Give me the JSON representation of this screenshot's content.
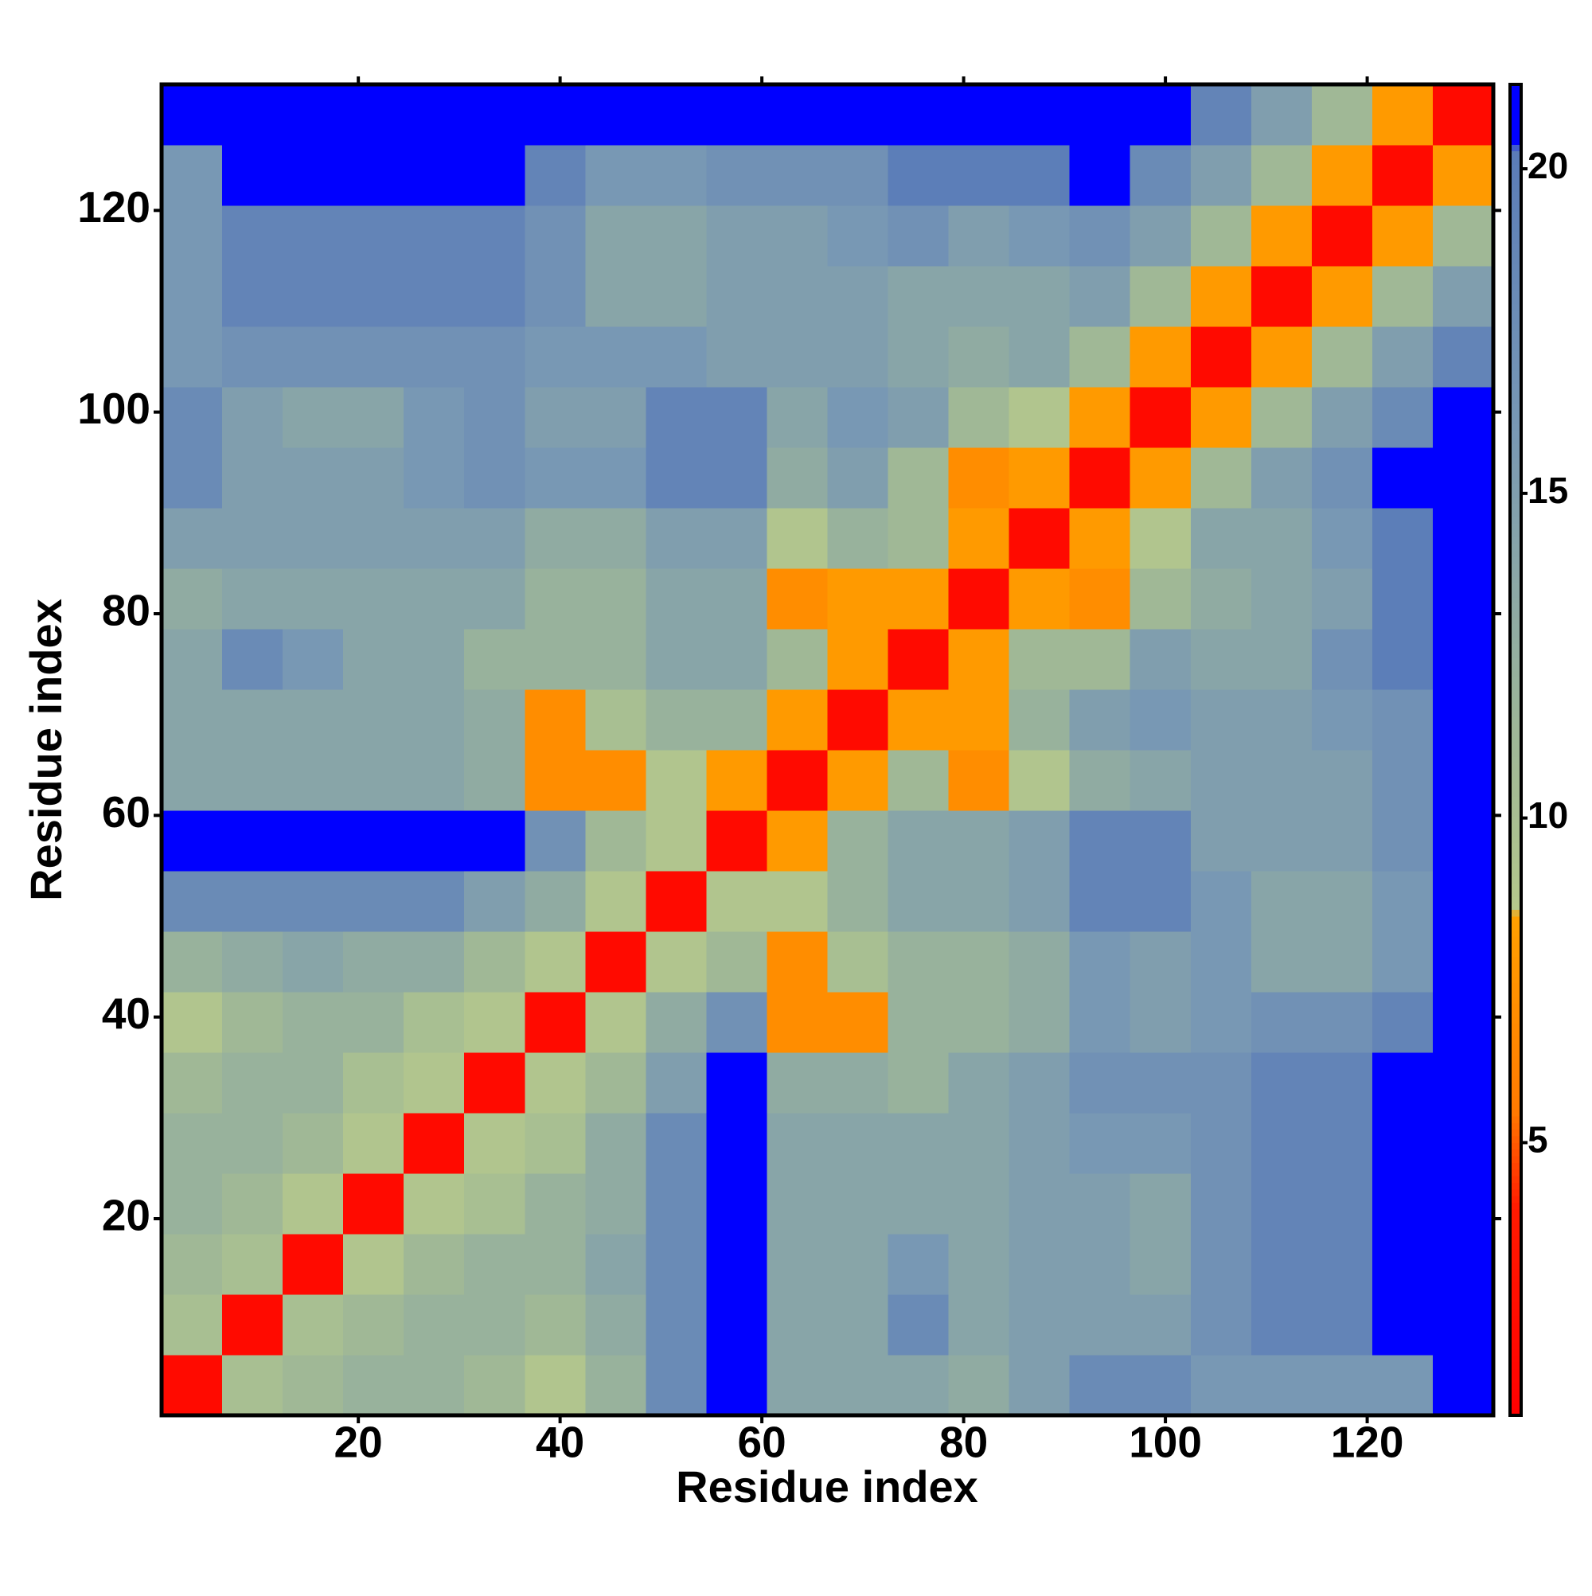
{
  "chart_data": {
    "type": "heatmap",
    "xlabel": "Residue index",
    "ylabel": "Residue index",
    "xbins": [
      0.5,
      6.5,
      12.5,
      18.5,
      24.5,
      30.5,
      36.5,
      42.5,
      48.5,
      54.5,
      60.5,
      66.5,
      72.5,
      78.5,
      84.5,
      90.5,
      96.5,
      102.5,
      108.5,
      114.5,
      120.5,
      126.5,
      132.5
    ],
    "ybins": [
      0.5,
      6.5,
      12.5,
      18.5,
      24.5,
      30.5,
      36.5,
      42.5,
      48.5,
      54.5,
      60.5,
      66.5,
      72.5,
      78.5,
      84.5,
      90.5,
      96.5,
      102.5,
      108.5,
      114.5,
      120.5,
      126.5,
      132.5
    ],
    "xlim": [
      0.5,
      132.5
    ],
    "ylim": [
      0.5,
      132.5
    ],
    "xticks": [
      20,
      40,
      60,
      80,
      100,
      120
    ],
    "yticks": [
      20,
      40,
      60,
      80,
      100,
      120
    ],
    "z": [
      [
        2,
        10,
        11,
        12,
        12,
        11,
        9,
        12,
        18,
        21,
        14,
        14,
        14,
        13,
        15,
        18,
        18,
        16,
        16,
        16,
        16,
        21
      ],
      [
        10,
        2,
        10,
        11,
        12,
        12,
        11,
        13,
        18,
        21,
        14,
        14,
        18,
        14,
        15,
        15,
        15,
        17,
        19,
        19,
        21,
        21
      ],
      [
        11,
        10,
        2,
        9,
        11,
        12,
        12,
        14,
        18,
        21,
        14,
        14,
        16,
        14,
        15,
        15,
        14,
        17,
        19,
        19,
        21,
        21
      ],
      [
        12,
        11,
        9,
        2,
        9,
        10,
        12,
        13,
        18,
        21,
        14,
        14,
        14,
        14,
        15,
        15,
        14,
        17,
        19,
        19,
        21,
        21
      ],
      [
        12,
        12,
        11,
        9,
        2,
        9,
        10,
        13,
        18,
        21,
        14,
        14,
        14,
        14,
        15,
        16,
        16,
        17,
        19,
        19,
        21,
        21
      ],
      [
        11,
        12,
        12,
        10,
        9,
        2,
        9,
        11,
        15,
        21,
        13,
        13,
        12,
        14,
        15,
        17,
        17,
        17,
        19,
        19,
        21,
        21
      ],
      [
        9,
        11,
        12,
        12,
        10,
        9,
        2,
        9,
        13,
        17,
        7,
        7,
        12,
        12,
        13,
        16,
        15,
        16,
        17,
        17,
        19,
        21
      ],
      [
        12,
        13,
        14,
        13,
        13,
        11,
        9,
        2,
        9,
        11,
        7,
        10,
        12,
        12,
        13,
        16,
        15,
        16,
        14,
        14,
        16,
        21
      ],
      [
        18,
        18,
        18,
        18,
        18,
        15,
        13,
        9,
        2,
        9,
        9,
        12,
        14,
        14,
        15,
        19,
        19,
        16,
        14,
        14,
        16,
        21
      ],
      [
        21,
        21,
        21,
        21,
        21,
        21,
        17,
        11,
        9,
        2,
        8,
        12,
        14,
        14,
        15,
        19,
        19,
        15,
        15,
        15,
        17,
        21
      ],
      [
        14,
        14,
        14,
        14,
        14,
        13,
        7,
        7,
        9,
        8,
        2,
        8,
        11,
        7,
        9,
        13,
        14,
        15,
        15,
        15,
        17,
        21
      ],
      [
        14,
        14,
        14,
        14,
        14,
        13,
        7,
        10,
        12,
        12,
        8,
        2,
        8,
        8,
        12,
        15,
        16,
        15,
        15,
        16,
        17,
        21
      ],
      [
        14,
        18,
        16,
        14,
        14,
        12,
        12,
        12,
        14,
        14,
        11,
        8,
        2,
        8,
        11,
        11,
        15,
        14,
        14,
        17,
        20,
        21
      ],
      [
        13,
        14,
        14,
        14,
        14,
        14,
        12,
        12,
        14,
        14,
        7,
        8,
        8,
        2,
        8,
        7,
        11,
        13,
        14,
        15,
        20,
        21
      ],
      [
        15,
        15,
        15,
        15,
        15,
        15,
        13,
        13,
        15,
        15,
        9,
        12,
        11,
        8,
        2,
        8,
        9,
        14,
        14,
        16,
        20,
        21
      ],
      [
        18,
        15,
        15,
        15,
        16,
        17,
        16,
        16,
        19,
        19,
        13,
        15,
        11,
        7,
        8,
        2,
        8,
        11,
        15,
        17,
        21,
        21
      ],
      [
        18,
        15,
        14,
        14,
        16,
        17,
        15,
        15,
        19,
        19,
        14,
        16,
        15,
        11,
        9,
        8,
        2,
        8,
        11,
        15,
        18,
        21
      ],
      [
        16,
        17,
        17,
        17,
        17,
        17,
        16,
        16,
        16,
        15,
        15,
        15,
        14,
        13,
        14,
        11,
        8,
        2,
        8,
        11,
        15,
        19
      ],
      [
        16,
        19,
        19,
        19,
        19,
        19,
        17,
        14,
        14,
        15,
        15,
        15,
        14,
        14,
        14,
        15,
        11,
        8,
        2,
        8,
        11,
        15
      ],
      [
        16,
        19,
        19,
        19,
        19,
        19,
        17,
        14,
        14,
        15,
        15,
        16,
        17,
        15,
        16,
        17,
        15,
        11,
        8,
        2,
        8,
        11
      ],
      [
        16,
        21,
        21,
        21,
        21,
        21,
        19,
        16,
        16,
        17,
        17,
        17,
        20,
        20,
        20,
        21,
        18,
        15,
        11,
        8,
        2,
        8
      ],
      [
        21,
        21,
        21,
        21,
        21,
        21,
        21,
        21,
        21,
        21,
        21,
        21,
        21,
        21,
        21,
        21,
        21,
        19,
        15,
        11,
        8,
        2
      ]
    ],
    "zlim": [
      0.8,
      21.3
    ],
    "zticks": [
      5,
      10,
      15,
      20
    ],
    "colorscale": [
      [
        0.8,
        "#ff0000"
      ],
      [
        4,
        "#ff1a00"
      ],
      [
        5.5,
        "#ff7a00"
      ],
      [
        8.5,
        "#ffa000"
      ],
      [
        8.6,
        "#b4c88c"
      ],
      [
        11,
        "#a0b896"
      ],
      [
        16,
        "#7898b4"
      ],
      [
        20.3,
        "#5a7cb8"
      ],
      [
        20.4,
        "#0000ff"
      ],
      [
        21.3,
        "#0000ff"
      ]
    ]
  }
}
